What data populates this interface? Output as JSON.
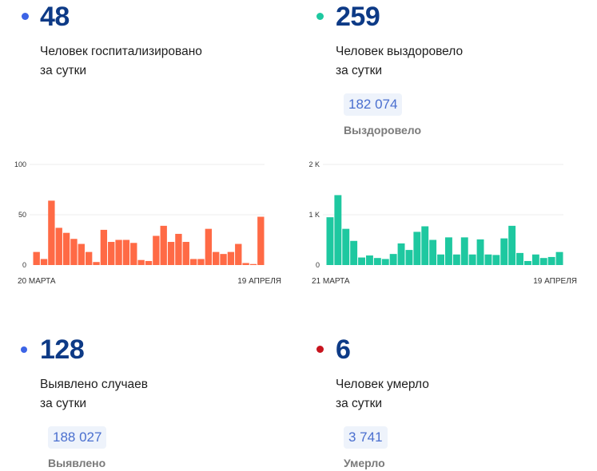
{
  "stats": [
    {
      "id": "hospitalized",
      "value": "48",
      "desc_line1": "Человек госпитализировано",
      "desc_line2": "за сутки",
      "dot_color": "#3c64e6"
    },
    {
      "id": "recovered",
      "value": "259",
      "desc_line1": "Человек выздоровело",
      "desc_line2": "за сутки",
      "dot_color": "#1ec8a0",
      "total": "182 074",
      "total_label": "Выздоровело"
    },
    {
      "id": "cases",
      "value": "128",
      "desc_line1": "Выявлено случаев",
      "desc_line2": "за сутки",
      "dot_color": "#3c64e6",
      "total": "188 027",
      "total_label": "Выявлено"
    },
    {
      "id": "deaths",
      "value": "6",
      "desc_line1": "Человек умерло",
      "desc_line2": "за сутки",
      "dot_color": "#c8141e",
      "total": "3 741",
      "total_label": "Умерло"
    }
  ],
  "chart_data": [
    {
      "type": "bar",
      "title": "Госпитализировано за сутки",
      "color": "#ff6a45",
      "ylim": [
        0,
        100
      ],
      "yticks": [
        "0",
        "50",
        "100"
      ],
      "ytick_values": [
        0,
        50,
        100
      ],
      "x_start_label": "20 МАРТА",
      "x_end_label": "19 АПРЕЛЯ",
      "grid": true,
      "values": [
        13,
        6,
        64,
        37,
        32,
        26,
        21,
        13,
        3,
        35,
        23,
        25,
        25,
        22,
        5,
        4,
        29,
        39,
        23,
        31,
        23,
        6,
        6,
        36,
        13,
        11,
        13,
        21,
        2,
        1,
        48
      ]
    },
    {
      "type": "bar",
      "title": "Выздоровело за сутки",
      "color": "#1ec8a0",
      "ylim": [
        0,
        2000
      ],
      "yticks": [
        "0",
        "1 K",
        "2 K"
      ],
      "ytick_values": [
        0,
        1000,
        2000
      ],
      "x_start_label": "21 МАРТА",
      "x_end_label": "19 АПРЕЛЯ",
      "grid": true,
      "values": [
        950,
        1390,
        720,
        480,
        150,
        190,
        140,
        120,
        220,
        430,
        300,
        660,
        770,
        500,
        210,
        550,
        210,
        550,
        210,
        510,
        210,
        200,
        530,
        780,
        240,
        80,
        210,
        140,
        160,
        259
      ]
    }
  ]
}
